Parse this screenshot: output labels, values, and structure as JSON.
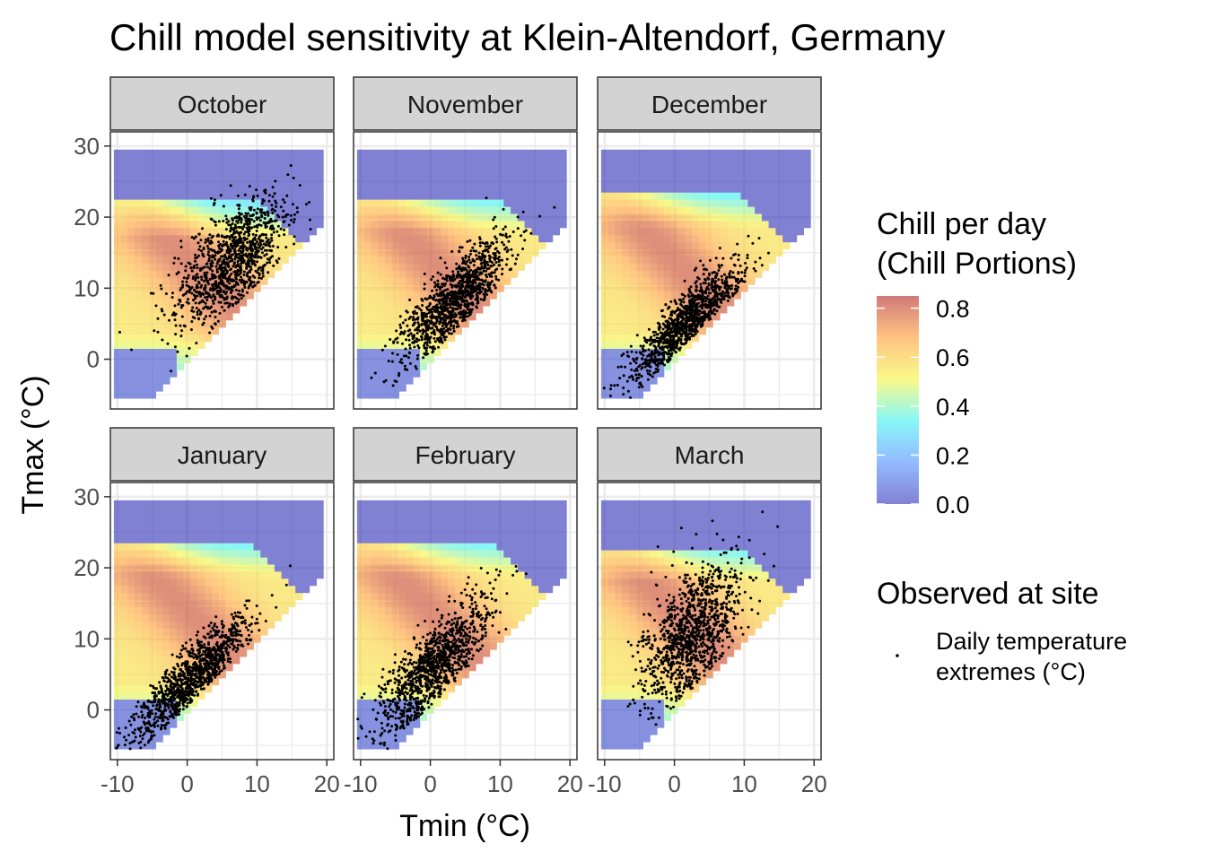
{
  "chart_data": {
    "type": "heatmap",
    "title": "Chill model sensitivity at Klein-Altendorf, Germany",
    "xlabel": "Tmin (°C)",
    "ylabel": "Tmax (°C)",
    "xlim": [
      -11,
      21
    ],
    "ylim": [
      -7,
      32
    ],
    "x_ticks": [
      -10,
      0,
      10,
      20
    ],
    "x_tick_labels": [
      "-10",
      "0",
      "10",
      "20"
    ],
    "y_ticks": [
      0,
      10,
      20,
      30
    ],
    "y_tick_labels": [
      "0",
      "10",
      "20",
      "30"
    ],
    "grid": true,
    "panels": [
      "October",
      "November",
      "December",
      "January",
      "February",
      "March"
    ],
    "fill": {
      "name": "Chill per day",
      "name_line2": "(Chill Portions)",
      "range": [
        0,
        0.85
      ],
      "breaks": [
        0.0,
        0.2,
        0.4,
        0.6,
        0.8
      ],
      "break_labels": [
        "0.0",
        "0.2",
        "0.4",
        "0.6",
        "0.8"
      ],
      "palette": [
        "#2E2EB8",
        "#4A8CFF",
        "#39F2F2",
        "#F5F53C",
        "#FF9B2E",
        "#B22020"
      ],
      "alpha": 0.6
    },
    "sensitivity_grid": {
      "tmin_range": [
        -10,
        19
      ],
      "tmax_range": [
        -5,
        29
      ],
      "rule": "Tmax >= Tmin"
    },
    "points": {
      "name": "Observed at site",
      "label_line1": "Daily temperature",
      "label_line2": "extremes (°C)",
      "color": "#000000",
      "count_per_panel": 1100,
      "month_stats": [
        {
          "month": "October",
          "tmin_mean": 6.5,
          "tmin_sd": 4.0,
          "tmax_mean": 14.0,
          "tmax_sd": 4.5,
          "rho": 0.65
        },
        {
          "month": "November",
          "tmin_mean": 3.5,
          "tmin_sd": 3.8,
          "tmax_mean": 8.5,
          "tmax_sd": 4.2,
          "rho": 0.78
        },
        {
          "month": "December",
          "tmin_mean": 1.5,
          "tmin_sd": 3.8,
          "tmax_mean": 5.0,
          "tmax_sd": 4.0,
          "rho": 0.85
        },
        {
          "month": "January",
          "tmin_mean": 0.5,
          "tmin_sd": 4.2,
          "tmax_mean": 4.5,
          "tmax_sd": 4.3,
          "rho": 0.88
        },
        {
          "month": "February",
          "tmin_mean": 0.5,
          "tmin_sd": 4.0,
          "tmax_mean": 6.0,
          "tmax_sd": 4.8,
          "rho": 0.8
        },
        {
          "month": "March",
          "tmin_mean": 2.5,
          "tmin_sd": 3.5,
          "tmax_mean": 11.0,
          "tmax_sd": 5.0,
          "rho": 0.55
        }
      ]
    }
  }
}
